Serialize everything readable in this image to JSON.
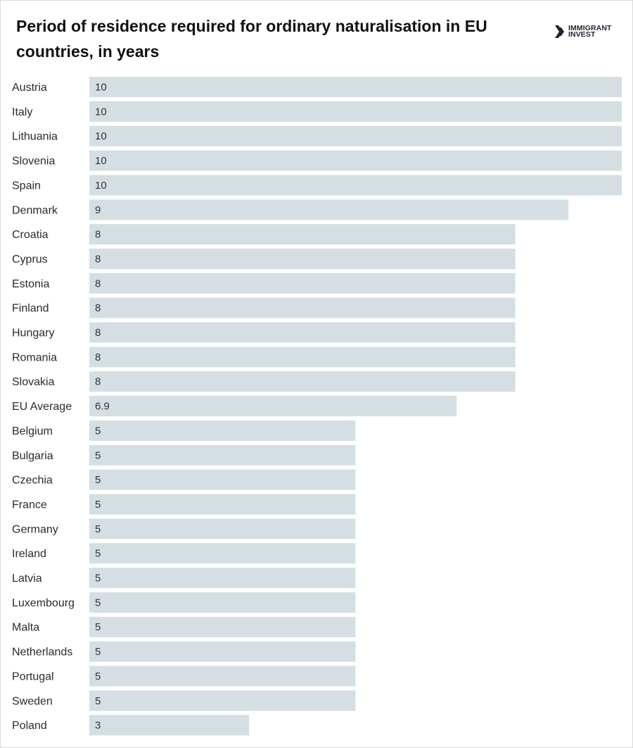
{
  "header": {
    "title": "Period of residence required for ordinary naturalisation in EU countries, in years",
    "logo_line1": "IMMIGRANT",
    "logo_line2": "INVEST",
    "logo_icon": "double-chevron-right-icon"
  },
  "colors": {
    "bar": "#d5dfe3",
    "text": "#2b2b2b",
    "title": "#111111",
    "logo": "#1b2430"
  },
  "chart_data": {
    "type": "bar",
    "orientation": "horizontal",
    "title": "Period of residence required for ordinary naturalisation in EU countries, in years",
    "xlim": [
      0,
      10
    ],
    "grid": false,
    "legend": "none",
    "categories": [
      "Austria",
      "Italy",
      "Lithuania",
      "Slovenia",
      "Spain",
      "Denmark",
      "Croatia",
      "Cyprus",
      "Estonia",
      "Finland",
      "Hungary",
      "Romania",
      "Slovakia",
      "EU Average",
      "Belgium",
      "Bulgaria",
      "Czechia",
      "France",
      "Germany",
      "Ireland",
      "Latvia",
      "Luxembourg",
      "Malta",
      "Netherlands",
      "Portugal",
      "Sweden",
      "Poland"
    ],
    "values": [
      10,
      10,
      10,
      10,
      10,
      9,
      8,
      8,
      8,
      8,
      8,
      8,
      8,
      6.9,
      5,
      5,
      5,
      5,
      5,
      5,
      5,
      5,
      5,
      5,
      5,
      5,
      3
    ],
    "value_labels": [
      "10",
      "10",
      "10",
      "10",
      "10",
      "9",
      "8",
      "8",
      "8",
      "8",
      "8",
      "8",
      "8",
      "6.9",
      "5",
      "5",
      "5",
      "5",
      "5",
      "5",
      "5",
      "5",
      "5",
      "5",
      "5",
      "5",
      "3"
    ]
  }
}
